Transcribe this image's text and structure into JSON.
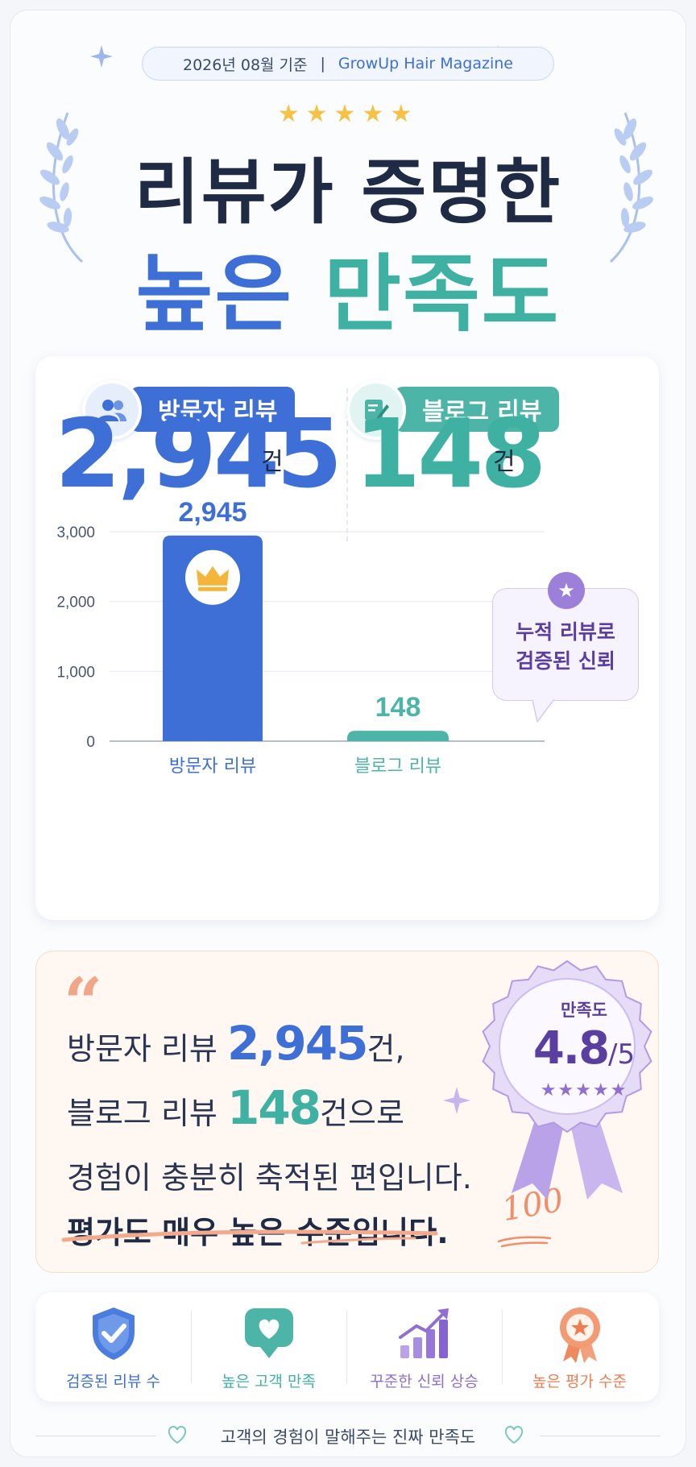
{
  "header": {
    "date": "2026년 08월 기준",
    "separator": "|",
    "magazine": "GrowUp Hair Magazine",
    "stars": "★★★★★",
    "title_line1": "리뷰가 증명한",
    "title_line2_a": "높은",
    "title_line2_b": "만족도"
  },
  "stats": {
    "visitor": {
      "label": "방문자 리뷰",
      "value": "2,945",
      "unit": "건",
      "icon": "users-icon",
      "color": "#3d6fd6"
    },
    "blog": {
      "label": "블로그 리뷰",
      "value": "148",
      "unit": "건",
      "icon": "blog-edit-icon",
      "color": "#3fb1a3"
    }
  },
  "chart_data": {
    "type": "bar",
    "categories": [
      "방문자 리뷰",
      "블로그 리뷰"
    ],
    "values": [
      2945,
      148
    ],
    "value_labels": [
      "2,945",
      "148"
    ],
    "colors": [
      "#3d6fd6",
      "#4cb5a7"
    ],
    "ylim": [
      0,
      3000
    ],
    "yticks": [
      0,
      1000,
      2000,
      3000
    ],
    "ytick_labels": [
      "0",
      "1,000",
      "2,000",
      "3,000"
    ],
    "grid": true,
    "title": "",
    "xlabel": "",
    "ylabel": "",
    "annotation": {
      "line1": "누적 리뷰로",
      "line2": "검증된 신뢰",
      "icon": "star-icon"
    },
    "crown_icon": "crown-icon"
  },
  "quote": {
    "mark": "“",
    "line1_prefix": "방문자 리뷰 ",
    "line1_value": "2,945",
    "line1_suffix": "건,",
    "line2_prefix": "블로그 리뷰 ",
    "line2_value": "148",
    "line2_suffix": "건으로",
    "line3": "경험이 충분히 축적된 편입니다.",
    "line4": "평가도 매우 높은 수준입니다.",
    "handwriting": "100"
  },
  "badge": {
    "label": "만족도",
    "score": "4.8",
    "denominator": "/5",
    "stars": "★★★★★",
    "score_value": 4.8,
    "max": 5,
    "color": "#9b7fd8"
  },
  "features": [
    {
      "label": "검증된 리뷰 수",
      "icon": "shield-check-icon",
      "color": "#3d6fd6"
    },
    {
      "label": "높은 고객 만족",
      "icon": "heart-chat-icon",
      "color": "#3fb1a3"
    },
    {
      "label": "꾸준한 신뢰 상승",
      "icon": "growth-chart-icon",
      "color": "#8f6fd0"
    },
    {
      "label": "높은 평가 수준",
      "icon": "medal-icon",
      "color": "#ee7d52"
    }
  ],
  "footer": {
    "text": "고객의 경험이 말해주는 진짜 만족도",
    "icon": "heart-outline-icon"
  }
}
